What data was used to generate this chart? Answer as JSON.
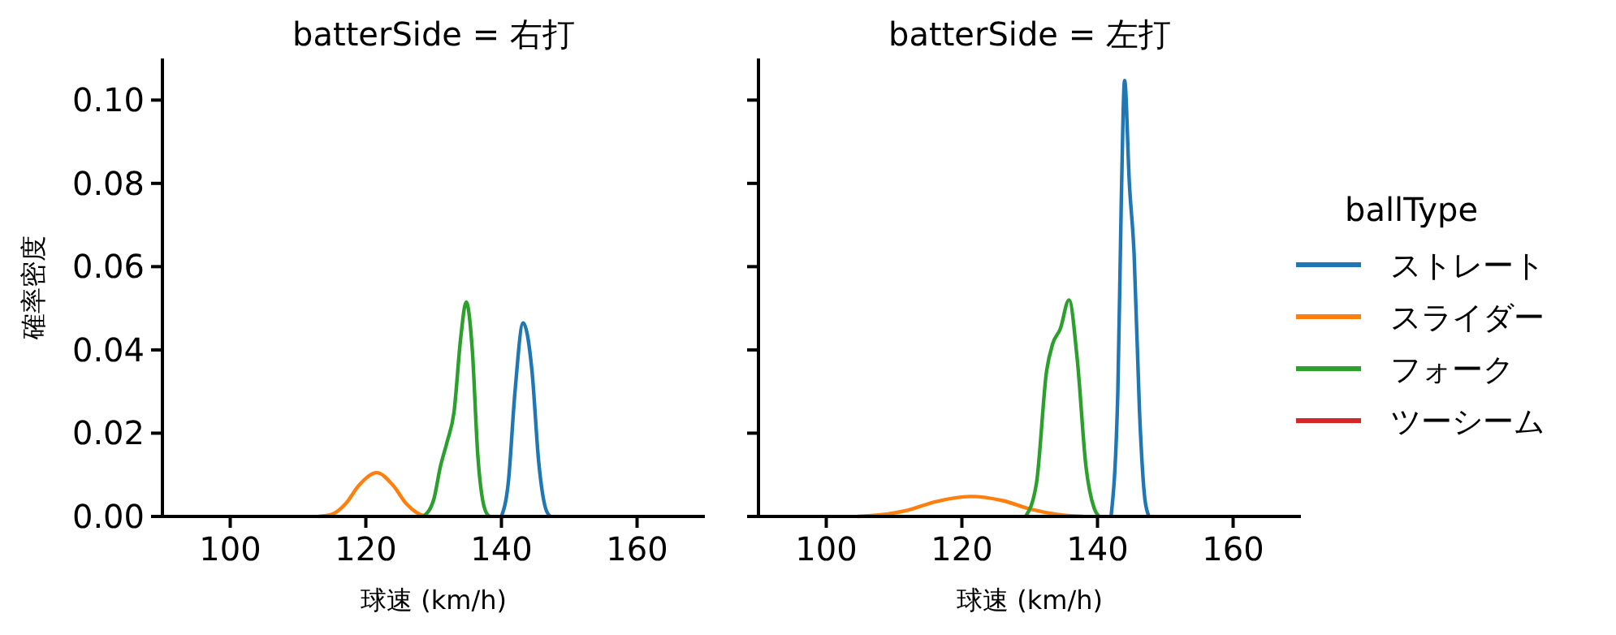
{
  "chart_data": [
    {
      "type": "line",
      "title": "batterSide = 右打",
      "xlabel": "球速 (km/h)",
      "ylabel": "確率密度",
      "xlim": [
        90,
        170
      ],
      "xticks": [
        100,
        120,
        140,
        160
      ],
      "ylim": [
        0,
        0.11
      ],
      "yticks": [
        {
          "value": 0,
          "label": "0.00"
        },
        {
          "value": 0.02,
          "label": "0.02"
        },
        {
          "value": 0.04,
          "label": "0.04"
        },
        {
          "value": 0.06,
          "label": "0.06"
        },
        {
          "value": 0.08,
          "label": "0.08"
        },
        {
          "value": 0.1,
          "label": "0.10"
        }
      ],
      "grid": false,
      "legend": false,
      "series": [
        {
          "color": "#1f77b4",
          "x": [
            140,
            141,
            142,
            143.2,
            144.5,
            145.5,
            146.5,
            147.2
          ],
          "values": [
            0,
            0.008,
            0.03,
            0.0465,
            0.035,
            0.013,
            0.002,
            0
          ]
        },
        {
          "color": "#ff7f0e",
          "x": [
            113,
            115,
            117,
            119,
            121.6,
            124,
            126,
            128,
            129.5
          ],
          "values": [
            0,
            0.0005,
            0.003,
            0.0075,
            0.0105,
            0.0075,
            0.003,
            0.0005,
            0
          ]
        },
        {
          "color": "#2ca02c",
          "x": [
            128.5,
            130,
            131,
            132,
            133,
            134,
            134.8,
            135.7,
            136.5,
            137.5,
            138.2
          ],
          "values": [
            0,
            0.004,
            0.012,
            0.018,
            0.025,
            0.043,
            0.0515,
            0.04,
            0.015,
            0.002,
            0
          ]
        }
      ]
    },
    {
      "type": "line",
      "title": "batterSide = 左打",
      "xlabel": "球速 (km/h)",
      "xlim": [
        90,
        170
      ],
      "xticks": [
        100,
        120,
        140,
        160
      ],
      "ylim": [
        0,
        0.11
      ],
      "yticks": [
        0,
        0.02,
        0.04,
        0.06,
        0.08,
        0.1
      ],
      "tick_labels": "x",
      "grid": false,
      "legend": "right",
      "legend_title": "ballType",
      "series": [
        {
          "name": "ストレート",
          "color": "#1f77b4",
          "x": [
            142,
            143,
            143.5,
            144,
            144.7,
            145.4,
            146.2,
            147,
            147.6
          ],
          "values": [
            0,
            0.03,
            0.075,
            0.1047,
            0.08,
            0.063,
            0.025,
            0.004,
            0
          ]
        },
        {
          "name": "スライダー",
          "color": "#ff7f0e",
          "x": [
            104.6,
            108,
            112,
            116,
            121.3,
            126,
            130,
            134,
            137.9
          ],
          "values": [
            0,
            0.0004,
            0.0015,
            0.0035,
            0.0048,
            0.0038,
            0.0018,
            0.0005,
            0
          ]
        },
        {
          "name": "フォーク",
          "color": "#2ca02c",
          "x": [
            129.4,
            131,
            132.5,
            133.4,
            134.5,
            135.8,
            137,
            138.3,
            139.5,
            140.2
          ],
          "values": [
            0,
            0.008,
            0.035,
            0.0415,
            0.045,
            0.052,
            0.038,
            0.012,
            0.002,
            0
          ]
        },
        {
          "name": "ツーシーム",
          "color": "#d62728"
        }
      ]
    }
  ]
}
